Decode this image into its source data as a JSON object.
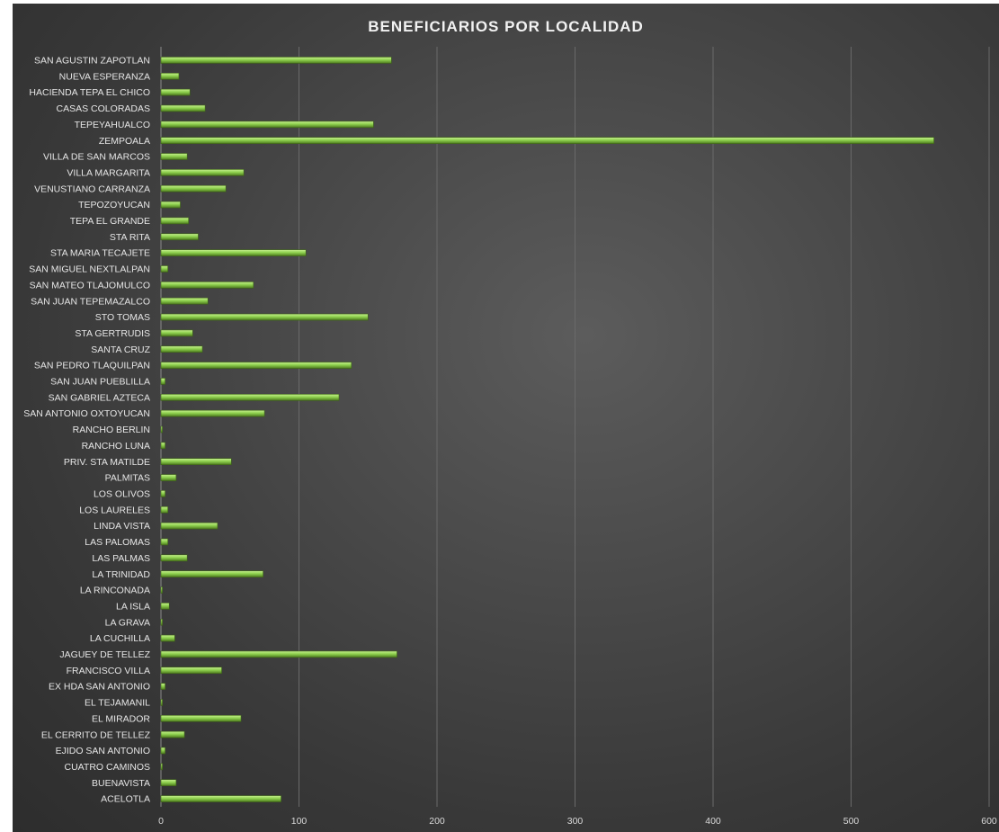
{
  "chart_data": {
    "type": "bar",
    "orientation": "horizontal",
    "title": "BENEFICIARIOS POR LOCALIDAD",
    "xlabel": "",
    "ylabel": "",
    "xlim": [
      0,
      600
    ],
    "x_ticks": [
      "0",
      "100",
      "200",
      "300",
      "400",
      "500",
      "600"
    ],
    "grid": "vertical",
    "legend": "none",
    "colors": {
      "bar": "#8fd14f",
      "bar_highlight": "#c6ef8e",
      "bar_shadow": "#4d7a1e",
      "background": "#444444",
      "grid": "#6a6a6a"
    },
    "categories": [
      "SAN AGUSTIN ZAPOTLAN",
      "NUEVA ESPERANZA",
      "HACIENDA TEPA EL CHICO",
      "CASAS COLORADAS",
      "TEPEYAHUALCO",
      "ZEMPOALA",
      "VILLA DE SAN MARCOS",
      "VILLA MARGARITA",
      "VENUSTIANO CARRANZA",
      "TEPOZOYUCAN",
      "TEPA EL GRANDE",
      "STA RITA",
      "STA MARIA TECAJETE",
      "SAN MIGUEL NEXTLALPAN",
      "SAN MATEO TLAJOMULCO",
      "SAN JUAN TEPEMAZALCO",
      "STO TOMAS",
      "STA GERTRUDIS",
      "SANTA CRUZ",
      "SAN PEDRO TLAQUILPAN",
      "SAN JUAN PUEBLILLA",
      "SAN GABRIEL AZTECA",
      "SAN ANTONIO OXTOYUCAN",
      "RANCHO BERLIN",
      "RANCHO LUNA",
      "PRIV. STA MATILDE",
      "PALMITAS",
      "LOS OLIVOS",
      "LOS LAURELES",
      "LINDA VISTA",
      "LAS PALOMAS",
      "LAS PALMAS",
      "LA TRINIDAD",
      "LA RINCONADA",
      "LA ISLA",
      "LA GRAVA",
      "LA CUCHILLA",
      "JAGUEY DE TELLEZ",
      "FRANCISCO VILLA",
      "EX HDA SAN ANTONIO",
      "EL TEJAMANIL",
      "EL MIRADOR",
      "EL CERRITO DE TELLEZ",
      "EJIDO SAN ANTONIO",
      "CUATRO CAMINOS",
      "BUENAVISTA",
      "ACELOTLA"
    ],
    "values": [
      167,
      13,
      21,
      32,
      154,
      560,
      19,
      60,
      47,
      14,
      20,
      27,
      105,
      5,
      67,
      34,
      150,
      23,
      30,
      138,
      3,
      129,
      75,
      1,
      3,
      51,
      11,
      3,
      5,
      41,
      5,
      19,
      74,
      1,
      6,
      1,
      10,
      171,
      44,
      3,
      1,
      58,
      17,
      3,
      1,
      11,
      87
    ]
  }
}
